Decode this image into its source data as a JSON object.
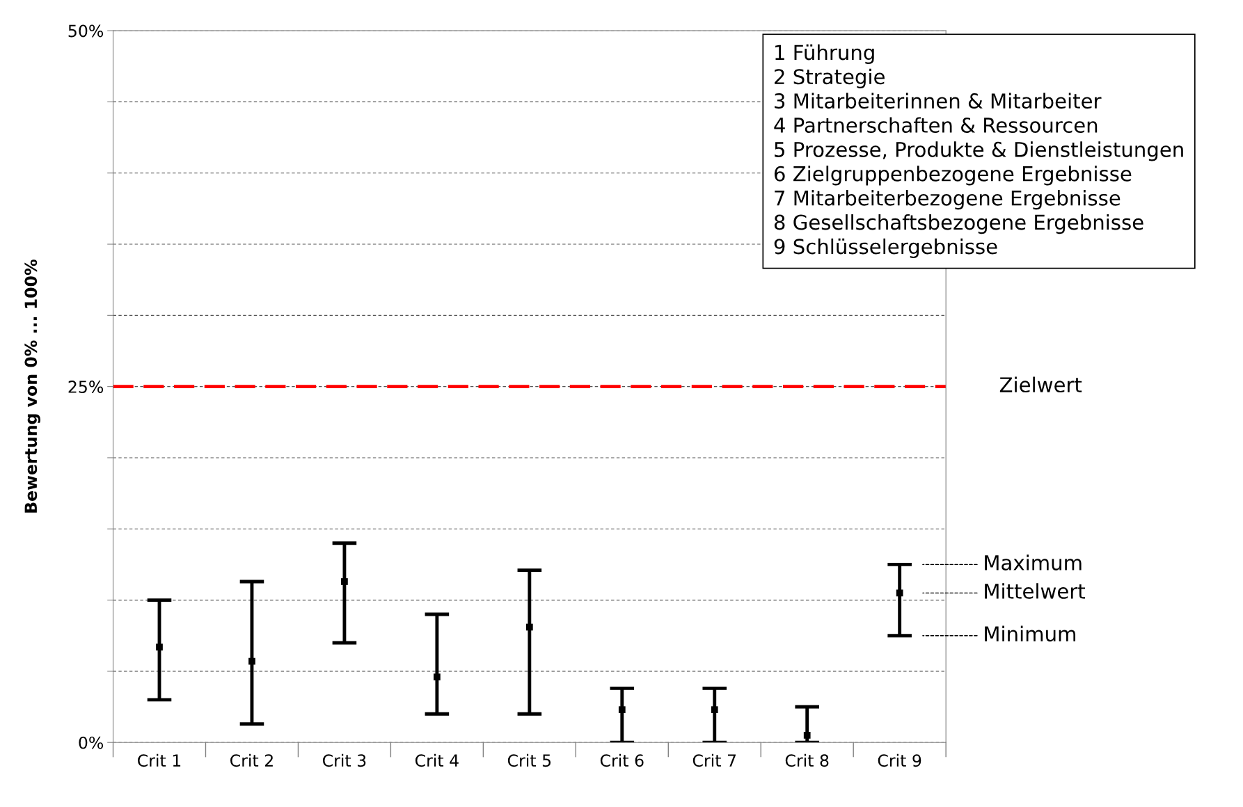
{
  "chart_data": {
    "type": "scatter",
    "ylabel": "Bewertung von 0% ... 100%",
    "categories": [
      "Crit 1",
      "Crit 2",
      "Crit 3",
      "Crit 4",
      "Crit 5",
      "Crit 6",
      "Crit 7",
      "Crit 8",
      "Crit 9"
    ],
    "series": [
      {
        "color": "#000000",
        "values": [
          6.7,
          5.7,
          11.3,
          4.6,
          8.1,
          2.3,
          2.3,
          0.5,
          10.5
        ],
        "errors": [
          [
            3,
            10
          ],
          [
            1.3,
            11.3
          ],
          [
            7,
            14
          ],
          [
            2,
            9
          ],
          [
            2,
            12.1
          ],
          [
            0,
            3.8
          ],
          [
            0,
            3.8
          ],
          [
            0,
            2.5
          ],
          [
            7.5,
            12.5
          ]
        ]
      }
    ],
    "ylim": [
      0,
      50
    ],
    "marker": "square",
    "yticks": [
      {
        "value": 0,
        "label": "0%"
      },
      {
        "value": 5,
        "label": null
      },
      {
        "value": 10,
        "label": null
      },
      {
        "value": 15,
        "label": null
      },
      {
        "value": 20,
        "label": null
      },
      {
        "value": 25,
        "label": "25%"
      },
      {
        "value": 30,
        "label": null
      },
      {
        "value": 35,
        "label": null
      },
      {
        "value": 40,
        "label": null
      },
      {
        "value": 45,
        "label": null
      },
      {
        "value": 50,
        "label": "50%"
      }
    ],
    "grid": "y",
    "ref_lines": [
      {
        "axis": "y",
        "value": 25,
        "label": "Zielwert",
        "color": "#ff0000",
        "line_style": "dashed"
      }
    ],
    "annotations": [
      "1 Führung\n2 Strategie\n3 Mitarbeiterinnen & Mitarbeiter\n4 Partnerschaften & Ressourcen\n5 Prozesse, Produkte & Dienstleistungen\n6 Zielgruppenbezogene Ergebnisse\n7 Mitarbeiterbezogene Ergebnisse\n8 Gesellschaftsbezogene Ergebnisse\n9 Schlüsselergebnisse",
      "Maximum",
      "Mittelwert",
      "Minimum"
    ]
  }
}
